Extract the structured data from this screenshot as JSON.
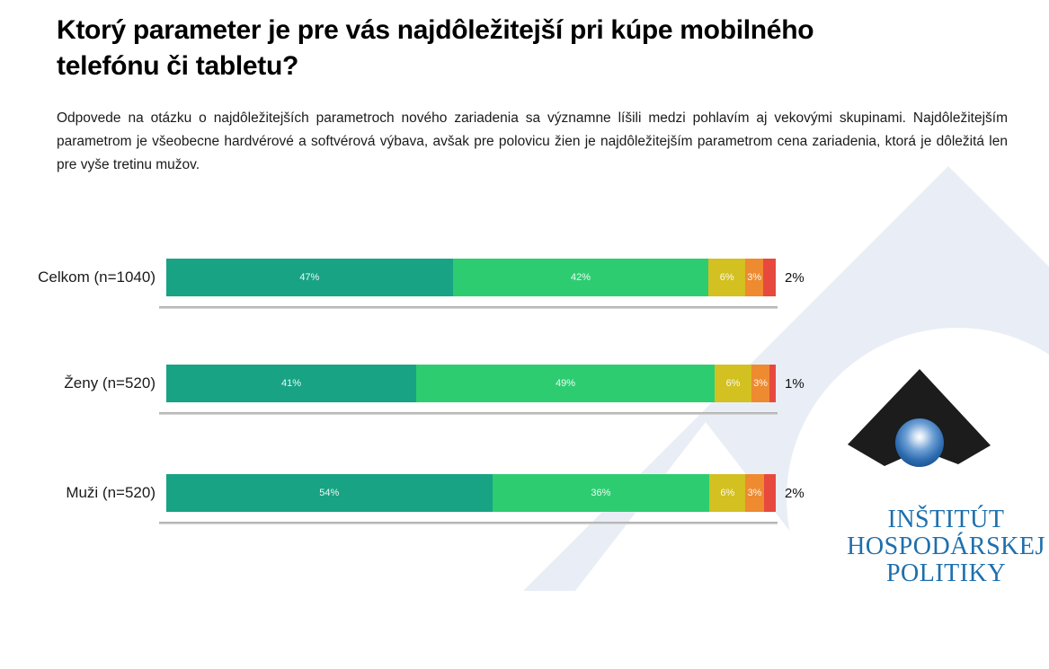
{
  "page": {
    "title": "Ktorý parameter je pre vás najdôležitejší pri kúpe mobilného telefónu či tabletu?",
    "subtitle": "Odpovede na otázku o najdôležitejších parametroch nového zariadenia sa významne líšili medzi pohlavím aj vekovými skupinami. Najdôležitejším parametrom je všeobecne hardvérové a softvérová výbava, avšak pre polovicu žien je najdôležitejším parametrom cena zariadenia, ktorá je dôležitá len pre vyše tretinu mužov."
  },
  "chart_data": {
    "type": "bar",
    "orientation": "horizontal",
    "stacked": true,
    "unit": "%",
    "xlim": [
      0,
      100
    ],
    "grid": "off",
    "legend": "none",
    "categories": [
      "Celkom (n=1040)",
      "Ženy (n=520)",
      "Muži (n=520)"
    ],
    "series": [
      {
        "name": "segment-1",
        "color": "#18a385",
        "values": [
          47,
          41,
          54
        ]
      },
      {
        "name": "segment-2",
        "color": "#2ecc71",
        "values": [
          42,
          49,
          36
        ]
      },
      {
        "name": "segment-3",
        "color": "#d3c021",
        "values": [
          6,
          6,
          6
        ]
      },
      {
        "name": "segment-4",
        "color": "#ee8a2f",
        "values": [
          3,
          3,
          3
        ]
      },
      {
        "name": "segment-5",
        "color": "#e8493f",
        "values": [
          2,
          1,
          2
        ]
      }
    ],
    "inside_labels": [
      [
        "47%",
        "42%",
        "6%",
        "3%",
        ""
      ],
      [
        "41%",
        "49%",
        "6%",
        "3%",
        ""
      ],
      [
        "54%",
        "36%",
        "6%",
        "3%",
        ""
      ]
    ],
    "outside_labels": [
      "2%",
      "1%",
      "2%"
    ]
  },
  "logo": {
    "line1": "INŠTITÚT",
    "line2": "HOSPODÁRSKEJ",
    "line3": "POLITIKY",
    "text_color": "#1e6fad"
  },
  "colors": {
    "watermark": "#e9eef6",
    "axis_line": "#a6a6a6",
    "title_text": "#000000",
    "body_text": "#1b1b1b"
  }
}
